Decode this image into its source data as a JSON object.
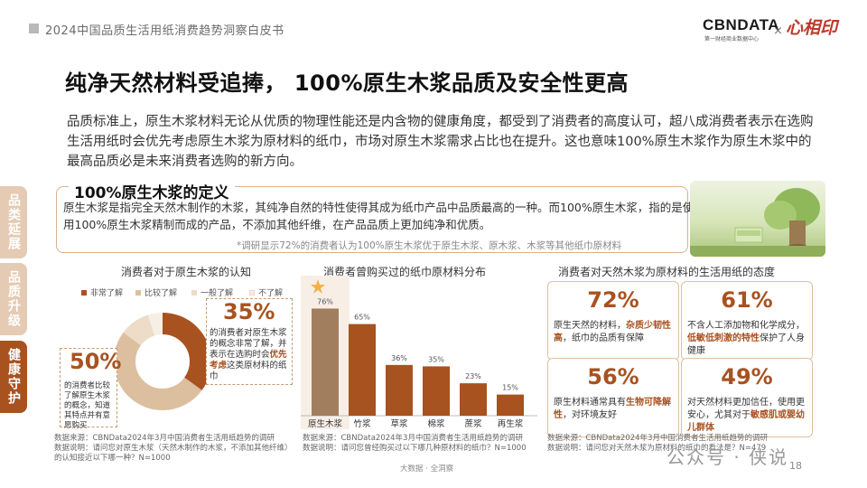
{
  "header": {
    "report_title": "2024中国品质生活用纸消费趋势洞察白皮书",
    "logo_cbn": "CBNDATA",
    "logo_cbn_sub": "第一财经商业数据中心",
    "logo_sep": "×",
    "logo_brand": "心相印"
  },
  "title": "纯净天然材料受追捧， 100%原生木浆品质及安全性更高",
  "intro": "品质标准上，原生木浆材料无论从优质的物理性能还是内含物的健康角度，都受到了消费者的高度认可，超八成消费者表示在选购生活用纸时会优先考虑原生木浆为原材料的纸巾，市场对原生木浆需求占比也在提升。这也意味100%原生木浆作为原生木浆中的最高品质必是未来消费者选购的新方向。",
  "side_tabs": [
    {
      "label": "品类延展",
      "active": false
    },
    {
      "label": "品质升级",
      "active": false
    },
    {
      "label": "健康守护",
      "active": true
    }
  ],
  "definition": {
    "heading": "100%原生木浆的定义",
    "text": "原生木浆是指完全天然木制作的木浆，其纯净自然的特性使得其成为纸巾产品中品质最高的一种。而100%原生木浆，指的是使用100%原生木浆精制而成的产品，不添加其他纤维，在产品品质上更加纯净和优质。",
    "note": "*调研显示72%的消费者认为100%原生木浆优于原生木浆、原木浆、木浆等其他纸巾原材料"
  },
  "donut": {
    "title": "消费者对于原生木浆的认知",
    "legend": [
      "非常了解",
      "比较了解",
      "一般了解",
      "不了解"
    ],
    "colors": [
      "#a85220",
      "#dcbf9e",
      "#ecdcc8",
      "#f6efe6"
    ],
    "callout_left": {
      "pct": "50%",
      "text": "的消费者比较了解原生木浆的概念，知道其特点并有意愿购买"
    },
    "callout_right": {
      "pct": "35%",
      "text_a": "的消费者对原生木浆的概念非常了解，并表示在选购时会",
      "highlight": "优先考虑",
      "text_b": "这类原材料的纸巾"
    },
    "source": [
      "数据来源：CBNData2024年3月中国消费者生活用纸趋势的调研",
      "数据说明：请问您对原生木浆（天然木制作的木浆，不添加其他纤维）的认知接近以下哪一种？N=1000"
    ]
  },
  "chart_data": {
    "type": "bar",
    "title": "消费者曾购买过的纸巾原材料分布",
    "categories": [
      "原生木浆",
      "竹浆",
      "草浆",
      "棉浆",
      "蔗浆",
      "再生浆"
    ],
    "values": [
      76,
      65,
      36,
      35,
      23,
      15
    ],
    "value_labels": [
      "76%",
      "65%",
      "36%",
      "35%",
      "23%",
      "15%"
    ],
    "colors": {
      "highlight": "#a07e5e",
      "bar": "#a85220"
    },
    "source": [
      "数据来源：CBNData2024年3月中国消费者生活用纸趋势的调研",
      "数据说明：请问您曾经购买过以下哪几种原材料的纸巾？N=1000"
    ]
  },
  "attitude": {
    "title": "消费者对天然木浆为原材料的生活用纸的态度",
    "cards": [
      {
        "pct": "72%",
        "text_a": "原生天然的材料，",
        "highlight": "杂质少韧性高",
        "text_b": "，纸巾的品质有保障"
      },
      {
        "pct": "61%",
        "text_a": "不含人工添加物和化学成分，",
        "highlight": "低敏低刺激的特性",
        "text_b": "保护了人身健康"
      },
      {
        "pct": "56%",
        "text_a": "原生材料通常具有",
        "highlight": "生物可降解性",
        "text_b": "，对环境友好"
      },
      {
        "pct": "49%",
        "text_a": "对天然材料更加信任，使用更安心，尤其对于",
        "highlight": "敏感肌或婴幼儿群体",
        "text_b": ""
      }
    ],
    "source": [
      "数据来源：CBNData2024年3月中国消费者生活用纸趋势的调研",
      "数据说明：请问您对天然木浆为原材料的纸巾的看法是？N=479"
    ]
  },
  "footer": {
    "center": "大数据 · 全洞察",
    "watermark": "公众号 · 侠说",
    "page": "18"
  }
}
